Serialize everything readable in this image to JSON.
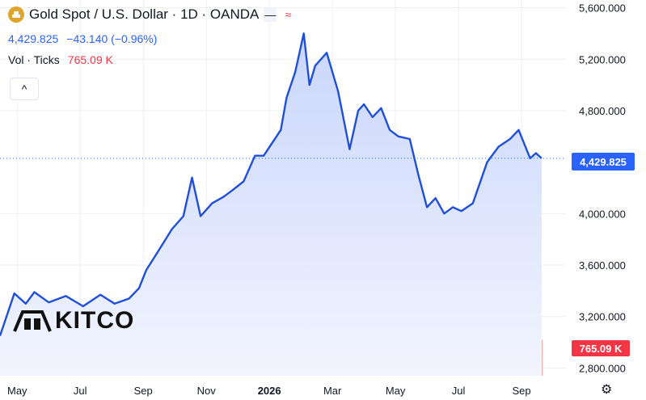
{
  "header": {
    "title": "Gold Spot / U.S. Dollar · 1D · OANDA",
    "price": "4,429.825",
    "change": "−43.140 (−0.96%)",
    "vol_label": "Vol · Ticks",
    "vol_value": "765.09 K",
    "collapse_glyph": "^",
    "flag_glyph": "≈"
  },
  "logo": {
    "text": "KITCO"
  },
  "price_tag": "4,429.825",
  "vol_tag": "765.09 K",
  "colors": {
    "line": "#1f4fd8",
    "area_top": "#c9d6fb",
    "area_bottom": "#f2f5ff",
    "up_vol": "#a8d5cf",
    "down_vol": "#f6b6b6",
    "price_tag": "#2962ff",
    "vol_tag": "#f23645"
  },
  "chart_data": {
    "type": "area",
    "title": "Gold Spot / U.S. Dollar · 1D · OANDA",
    "y_ticks": [
      "5,600.000",
      "5,200.000",
      "4,800.000",
      "4,000.000",
      "3,600.000",
      "3,200.000",
      "2,800.000"
    ],
    "y_tick_values": [
      5600,
      5200,
      4800,
      4000,
      3600,
      3200,
      2800
    ],
    "x_ticks": [
      "May",
      "Jul",
      "Sep",
      "Nov",
      "2026",
      "Mar",
      "May",
      "Jul",
      "Sep"
    ],
    "x_tick_index": [
      12,
      56,
      100,
      144,
      188,
      232,
      276,
      320,
      364
    ],
    "ylim": [
      2740,
      5660
    ],
    "grid": true,
    "x": [
      0,
      10,
      18,
      24,
      34,
      46,
      58,
      70,
      80,
      90,
      97,
      102,
      110,
      120,
      128,
      134,
      140,
      148,
      156,
      162,
      170,
      178,
      184,
      190,
      196,
      200,
      206,
      212,
      216,
      220,
      224,
      228,
      236,
      244,
      250,
      254,
      260,
      266,
      272,
      278,
      286,
      292,
      298,
      304,
      310,
      316,
      322,
      330,
      340,
      348,
      356,
      362,
      366,
      370,
      374,
      378
    ],
    "close": [
      3050,
      3380,
      3300,
      3390,
      3310,
      3360,
      3280,
      3370,
      3300,
      3340,
      3420,
      3560,
      3700,
      3880,
      3980,
      4280,
      3980,
      4080,
      4130,
      4180,
      4250,
      4450,
      4450,
      4550,
      4650,
      4900,
      5100,
      5400,
      5000,
      5150,
      5200,
      5250,
      4950,
      4500,
      4800,
      4850,
      4750,
      4820,
      4650,
      4600,
      4580,
      4300,
      4050,
      4120,
      4000,
      4050,
      4020,
      4080,
      4400,
      4520,
      4580,
      4650,
      4540,
      4430,
      4470,
      4430
    ],
    "volume_peak_index": 232,
    "current_price": 4429.825,
    "current_volume": "765.09 K"
  }
}
